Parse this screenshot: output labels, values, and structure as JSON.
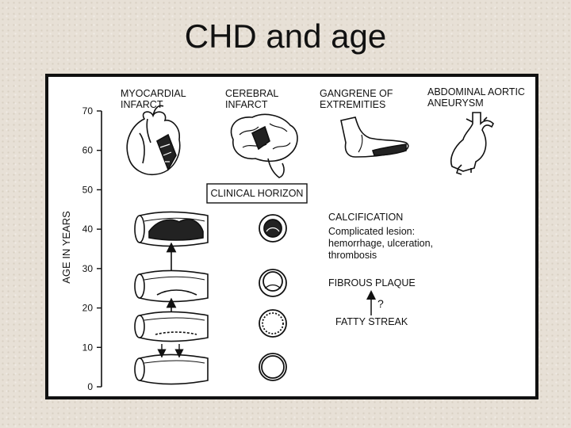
{
  "slide": {
    "title": "CHD and age"
  },
  "figure": {
    "axis_label": "AGE IN YEARS",
    "ticks": [
      "70",
      "60",
      "50",
      "40",
      "30",
      "20",
      "10",
      "0"
    ],
    "headers": {
      "myocardial": [
        "MYOCARDIAL",
        "INFARCT"
      ],
      "cerebral": [
        "CEREBRAL",
        "INFARCT"
      ],
      "gangrene": [
        "GANGRENE OF",
        "EXTREMITIES"
      ],
      "aortic": [
        "ABDOMINAL AORTIC",
        "ANEURYSM"
      ]
    },
    "clinical_horizon": "CLINICAL HORIZON",
    "stages": {
      "calcification": "CALCIFICATION",
      "complicated": [
        "Complicated lesion:",
        "hemorrhage, ulceration,",
        "thrombosis"
      ],
      "fibrous_plaque": "FIBROUS PLAQUE",
      "question_mark": "?",
      "fatty_streak": "FATTY STREAK"
    }
  },
  "colors": {
    "ink": "#111111",
    "paper": "#ffffff",
    "background": "#e7e0d6"
  }
}
